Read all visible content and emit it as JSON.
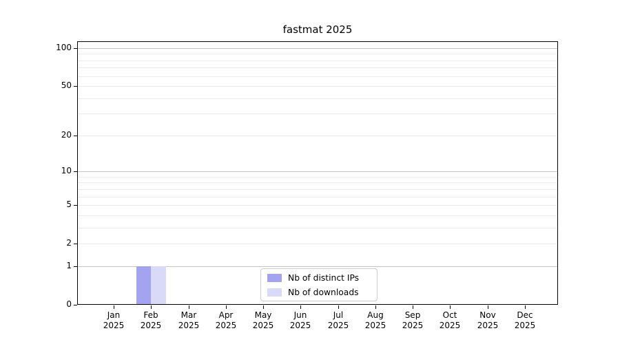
{
  "title": "fastmat 2025",
  "chart_data": {
    "type": "bar",
    "title": "fastmat 2025",
    "scale": "log1p",
    "categories": [
      "Jan 2025",
      "Feb 2025",
      "Mar 2025",
      "Apr 2025",
      "May 2025",
      "Jun 2025",
      "Jul 2025",
      "Aug 2025",
      "Sep 2025",
      "Oct 2025",
      "Nov 2025",
      "Dec 2025"
    ],
    "series": [
      {
        "name": "Nb of distinct IPs",
        "color": "#a3a3f0",
        "values": [
          0,
          1,
          0,
          0,
          0,
          0,
          0,
          0,
          0,
          0,
          0,
          0
        ]
      },
      {
        "name": "Nb of downloads",
        "color": "#d9d9f8",
        "values": [
          0,
          1,
          0,
          0,
          0,
          0,
          0,
          0,
          0,
          0,
          0,
          0
        ]
      }
    ],
    "y_ticks": [
      0,
      1,
      2,
      5,
      10,
      20,
      50,
      100
    ],
    "y_major_gridlines": [
      1,
      10,
      100
    ],
    "y_minor_gridlines": [
      2,
      3,
      4,
      5,
      6,
      7,
      8,
      9,
      20,
      30,
      40,
      50,
      60,
      70,
      80,
      90
    ],
    "ylim": [
      0,
      113
    ],
    "grid": "horizontal",
    "legend_position": "lower center",
    "colors": {
      "grid_major": "#c3c3c3",
      "grid_minor": "#ebebeb",
      "spine": "#000000",
      "text": "#000000"
    }
  }
}
